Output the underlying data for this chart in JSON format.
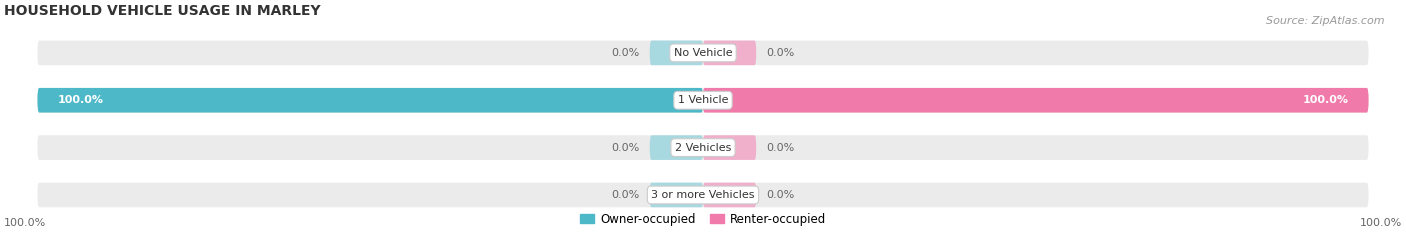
{
  "title": "HOUSEHOLD VEHICLE USAGE IN MARLEY",
  "source": "Source: ZipAtlas.com",
  "categories": [
    "No Vehicle",
    "1 Vehicle",
    "2 Vehicles",
    "3 or more Vehicles"
  ],
  "owner_values": [
    0.0,
    100.0,
    0.0,
    0.0
  ],
  "renter_values": [
    0.0,
    100.0,
    0.0,
    0.0
  ],
  "owner_color": "#4db8c8",
  "renter_color": "#f07aaa",
  "owner_color_light": "#a8d8e0",
  "renter_color_light": "#f0b0cc",
  "bar_bg_color": "#ebebeb",
  "bar_height": 0.52,
  "legend_owner": "Owner-occupied",
  "legend_renter": "Renter-occupied",
  "title_fontsize": 10,
  "source_fontsize": 8,
  "label_fontsize": 8,
  "cat_fontsize": 8,
  "legend_fontsize": 8.5,
  "bottom_left_label": "100.0%",
  "bottom_right_label": "100.0%"
}
